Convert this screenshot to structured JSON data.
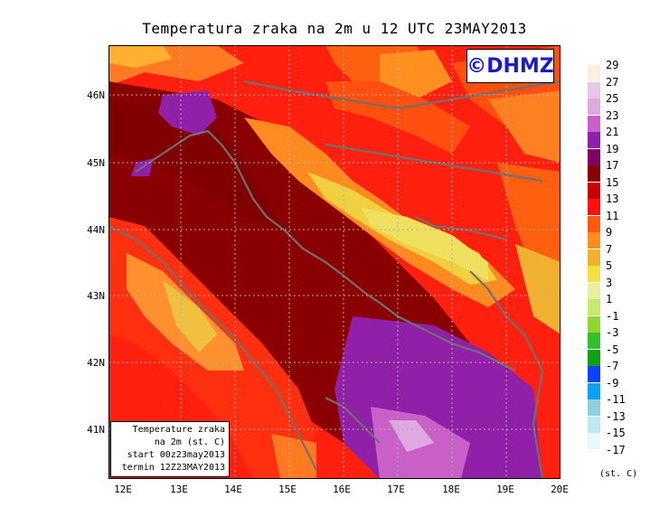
{
  "title": "Temperatura zraka na 2m u 12 UTC 23MAY2013",
  "logo": "©DHMZ",
  "infobox": {
    "line1": "Temperature zraka",
    "line2": "na 2m (st. C)",
    "line3": "start 00z23may2013",
    "line4": "termin 12Z23MAY2013"
  },
  "lat_labels": [
    "46N",
    "45N",
    "44N",
    "43N",
    "42N",
    "41N"
  ],
  "lon_labels": [
    "12E",
    "13E",
    "14E",
    "15E",
    "16E",
    "17E",
    "18E",
    "19E",
    "20E"
  ],
  "legend": {
    "labels": [
      "29",
      "27",
      "25",
      "23",
      "21",
      "19",
      "17",
      "15",
      "13",
      "11",
      "9",
      "7",
      "5",
      "3",
      "1",
      "-1",
      "-3",
      "-5",
      "-7",
      "-9",
      "-11",
      "-13",
      "-15",
      "-17"
    ],
    "colors": [
      "#fdeee0",
      "#e8c8e8",
      "#e0a8e0",
      "#c860c8",
      "#9020a8",
      "#800060",
      "#8a0000",
      "#c80000",
      "#ff1010",
      "#ff5a10",
      "#ff8c20",
      "#f0b030",
      "#f0e040",
      "#e8f0a0",
      "#c8e870",
      "#90d830",
      "#30c030",
      "#10a010",
      "#1040ff",
      "#10a0f0",
      "#90d0e0",
      "#c0e8f0",
      "#e8f8f8"
    ],
    "units": "(st. C)"
  }
}
